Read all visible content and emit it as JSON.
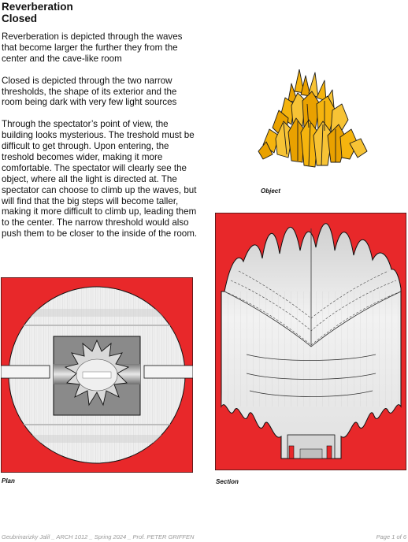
{
  "title": {
    "line1": "Reverberation",
    "line2": "Closed"
  },
  "paragraphs": [
    "Reverberation is depicted through the waves that become larger the further they from the center and the cave-like room",
    "Closed is depicted through the two narrow thresholds, the shape of its exterior and the room being dark with very few light sources",
    "Through the spectator’s point of view, the building looks mysterious. The treshold must be difficult to get through. Upon entering, the treshold becomes wider, making it more comfortable. The spectator will clearly see the object, where all the light is directed at. The spectator can choose to climb up the waves, but will find that the big steps will become taller, making it more difficult to climb up, leading them to the center. The narrow threshold would also push them to be closer to the inside of the room."
  ],
  "figures": {
    "object": {
      "caption": "Object",
      "color": "#f5b40e"
    },
    "plan": {
      "caption": "Plan",
      "color": "#e8282a"
    },
    "section": {
      "caption": "Section",
      "color": "#e8282a"
    }
  },
  "footer": {
    "left": "Geubrinarizky Jalil _ ARCH 1012 _ Spring 2024 _ Prof. PETER GRIFFEN",
    "right": "Page 1 of 6"
  }
}
